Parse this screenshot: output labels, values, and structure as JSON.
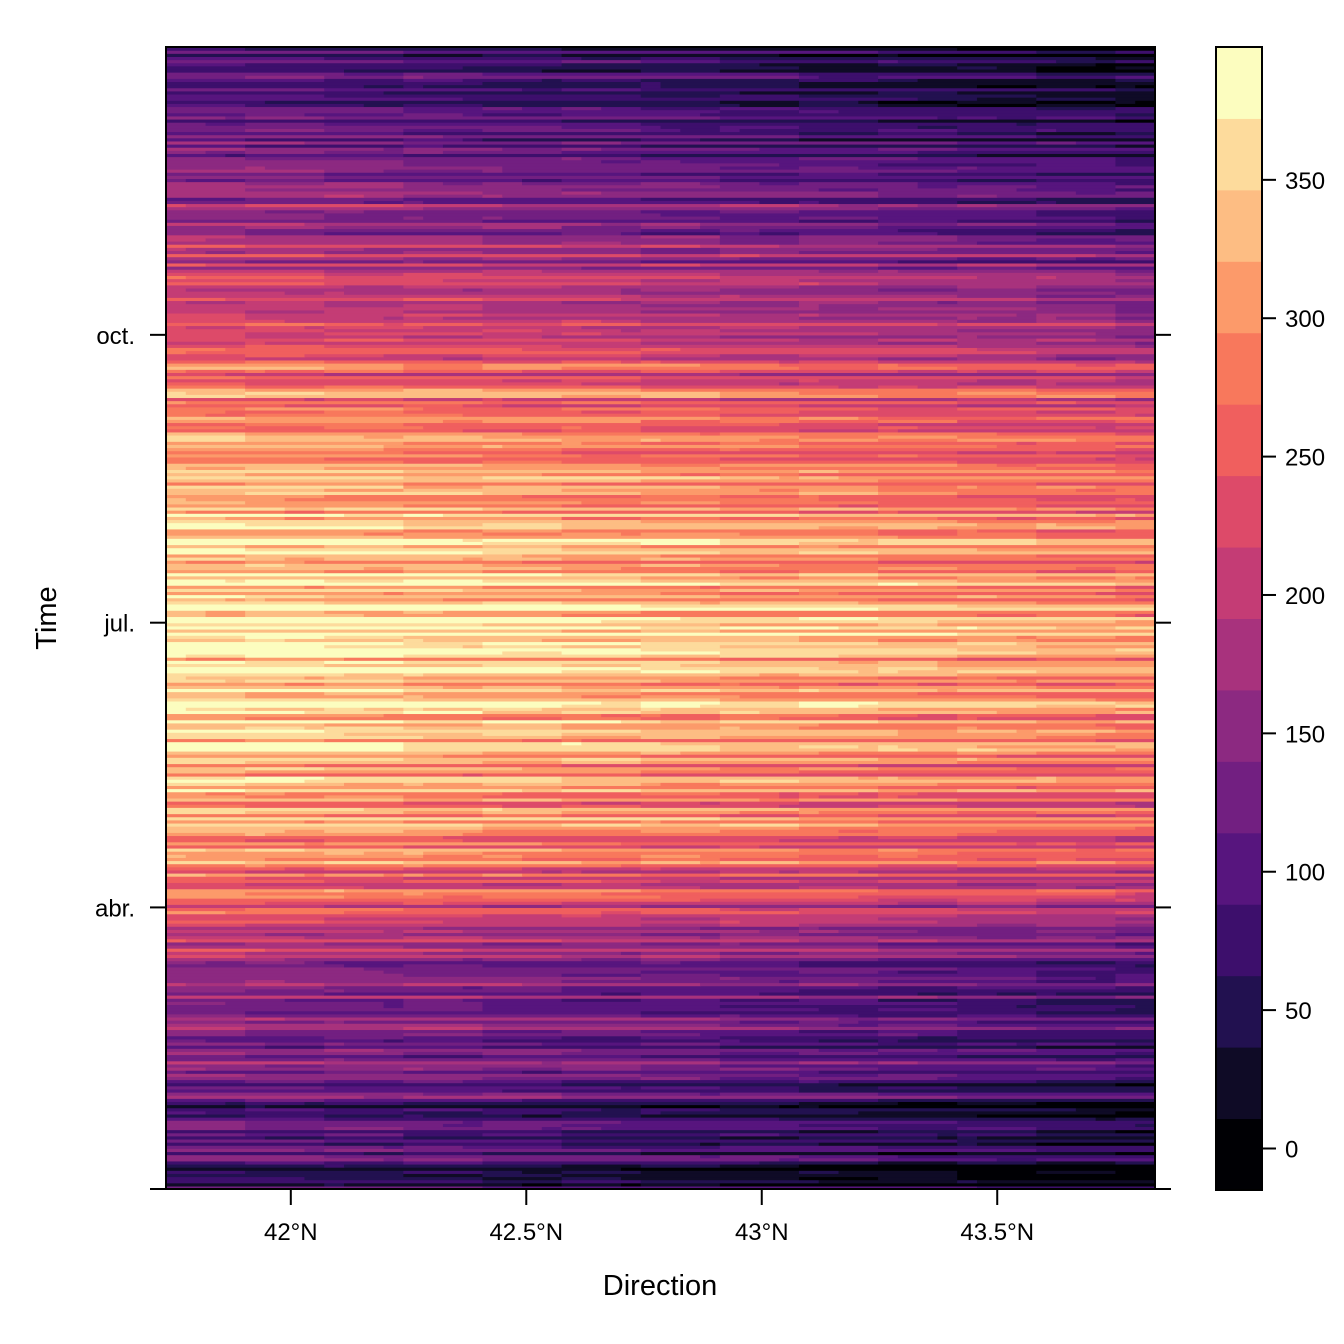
{
  "chart_data": {
    "type": "heatmap",
    "title": "",
    "xlabel": "Direction",
    "ylabel": "Time",
    "xlim": [
      41.735,
      43.835
    ],
    "ylim_days": [
      0,
      365
    ],
    "x_ticks": [
      {
        "value": 42.0,
        "label": "42°N"
      },
      {
        "value": 42.5,
        "label": "42.5°N"
      },
      {
        "value": 43.0,
        "label": "43°N"
      },
      {
        "value": 43.5,
        "label": "43.5°N"
      }
    ],
    "y_ticks": [
      {
        "day": 0,
        "label": ""
      },
      {
        "day": 90,
        "label": "abr."
      },
      {
        "day": 181,
        "label": "jul."
      },
      {
        "day": 273,
        "label": "oct."
      }
    ],
    "colorbar": {
      "range": [
        -15,
        398
      ],
      "ticks": [
        0,
        50,
        100,
        150,
        200,
        250,
        300,
        350
      ],
      "colors": [
        "#000004",
        "#0f0b26",
        "#221150",
        "#3d0f6c",
        "#57157e",
        "#721f81",
        "#8c2981",
        "#a8327d",
        "#c43c75",
        "#dd4a69",
        "#f05f5e",
        "#f8785c",
        "#fc9a6a",
        "#fdbd83",
        "#fddb9c",
        "#fcfdbf"
      ]
    },
    "time_profile_every_5_days": [
      70,
      40,
      95,
      60,
      110,
      75,
      120,
      90,
      140,
      110,
      165,
      130,
      150,
      175,
      140,
      205,
      190,
      230,
      215,
      260,
      240,
      300,
      270,
      320,
      290,
      300,
      335,
      280,
      345,
      310,
      330,
      350,
      320,
      360,
      335,
      370,
      345,
      365,
      330,
      355,
      310,
      345,
      325,
      320,
      290,
      335,
      300,
      280,
      310,
      270,
      250,
      285,
      240,
      255,
      230,
      210,
      230,
      190,
      215,
      170,
      195,
      150,
      120,
      160,
      110,
      130,
      95,
      100,
      70,
      115,
      60,
      90,
      75,
      85
    ],
    "west_east_offset": [
      20,
      -50
    ]
  }
}
